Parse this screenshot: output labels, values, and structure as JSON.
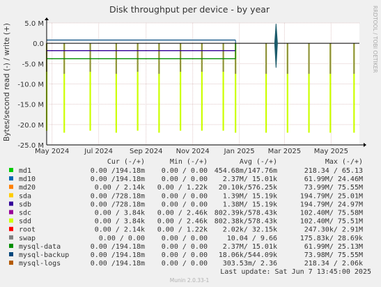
{
  "chart_data": {
    "type": "line",
    "title": "Disk throughput per device - by year",
    "ylabel": "Bytes/second read (-) / write (+)",
    "ylim": [
      -25000000,
      5000000
    ],
    "yticks": [
      {
        "value": 5000000,
        "label": "5.0 M"
      },
      {
        "value": 0,
        "label": "0.0"
      },
      {
        "value": -5000000,
        "label": "-5.0 M"
      },
      {
        "value": -10000000,
        "label": "-10.0 M"
      },
      {
        "value": -15000000,
        "label": "-15.0 M"
      },
      {
        "value": -20000000,
        "label": "-20.0 M"
      },
      {
        "value": -25000000,
        "label": "-25.0 M"
      }
    ],
    "xrange": [
      "2024-04-24",
      "2025-06-07"
    ],
    "xticks": [
      {
        "date": "2024-05-01",
        "label": "May 2024"
      },
      {
        "date": "2024-07-01",
        "label": "Jul 2024"
      },
      {
        "date": "2024-09-01",
        "label": "Sep 2024"
      },
      {
        "date": "2024-11-01",
        "label": "Nov 2024"
      },
      {
        "date": "2025-01-01",
        "label": "Jan 2025"
      },
      {
        "date": "2025-03-01",
        "label": "Mar 2025"
      },
      {
        "date": "2025-05-01",
        "label": "May 2025"
      }
    ],
    "grid": true,
    "series": [
      {
        "name": "md1",
        "color": "#00cc00",
        "cur": "0.00 /194.18m",
        "min": "0.00 /  0.00",
        "avg": "454.68m/147.76m",
        "max": "218.34 / 65.13"
      },
      {
        "name": "md10",
        "color": "#0066b3",
        "cur": "0.00 /194.18m",
        "min": "0.00 /  0.00",
        "avg": "2.37M/ 15.01k",
        "max": "61.99M/ 24.46M"
      },
      {
        "name": "md20",
        "color": "#ff8000",
        "cur": "0.00 /  2.14k",
        "min": "0.00 /  1.22k",
        "avg": "20.10k/576.25k",
        "max": "73.99M/ 75.55M"
      },
      {
        "name": "sda",
        "color": "#ffcc00",
        "cur": "0.00 /728.18m",
        "min": "0.00 /  0.00",
        "avg": "1.39M/ 15.19k",
        "max": "194.79M/ 25.01M"
      },
      {
        "name": "sdb",
        "color": "#330099",
        "cur": "0.00 /728.18m",
        "min": "0.00 /  0.00",
        "avg": "1.38M/ 15.19k",
        "max": "194.79M/ 24.97M"
      },
      {
        "name": "sdc",
        "color": "#990099",
        "cur": "0.00 /  3.84k",
        "min": "0.00 /  2.46k",
        "avg": "802.39k/578.43k",
        "max": "102.40M/ 75.58M"
      },
      {
        "name": "sdd",
        "color": "#ccff00",
        "cur": "0.00 /  3.84k",
        "min": "0.00 /  2.46k",
        "avg": "802.38k/578.43k",
        "max": "102.40M/ 75.51M"
      },
      {
        "name": "root",
        "color": "#ff0000",
        "cur": "0.00 /  2.14k",
        "min": "0.00 /  1.22k",
        "avg": "2.02k/ 32.15k",
        "max": "247.30k/  2.91M"
      },
      {
        "name": "swap",
        "color": "#808080",
        "cur": "0.00 /  0.00",
        "min": "0.00 /  0.00",
        "avg": "10.04 /  9.66",
        "max": "175.83k/ 28.69k"
      },
      {
        "name": "mysql-data",
        "color": "#008f00",
        "cur": "0.00 /194.18m",
        "min": "0.00 /  0.00",
        "avg": "2.37M/ 15.01k",
        "max": "61.99M/ 25.13M"
      },
      {
        "name": "mysql-backup",
        "color": "#00487d",
        "cur": "0.00 /194.18m",
        "min": "0.00 /  0.00",
        "avg": "18.06k/544.09k",
        "max": "73.98M/ 75.55M"
      },
      {
        "name": "mysql-logs",
        "color": "#b35a00",
        "cur": "0.00 /194.18m",
        "min": "0.00 /  0.00",
        "avg": "303.53m/  2.36",
        "max": "218.34 /  2.06k"
      }
    ],
    "lines": [
      {
        "series": "mysql-backup",
        "y": 800000,
        "to": "2024-12-27"
      },
      {
        "series": "sdb",
        "y": -1800000,
        "to": "2024-12-27"
      },
      {
        "series": "mysql-data",
        "y": -3800000,
        "to": "2024-12-27"
      }
    ],
    "spikes": [
      {
        "date": "2024-04-24",
        "bottom": -21500000,
        "depth": -7000000
      },
      {
        "date": "2024-05-17",
        "bottom": -22000000,
        "depth": -7500000
      },
      {
        "date": "2024-06-20",
        "bottom": -21500000,
        "depth": -7000000
      },
      {
        "date": "2024-07-24",
        "bottom": -22000000,
        "depth": -7500000
      },
      {
        "date": "2024-08-21",
        "bottom": -21500000,
        "depth": -7000000
      },
      {
        "date": "2024-09-18",
        "bottom": -22000000,
        "depth": -7500000
      },
      {
        "date": "2024-10-16",
        "bottom": -21500000,
        "depth": -7000000
      },
      {
        "date": "2024-11-13",
        "bottom": -21500000,
        "depth": -7000000
      },
      {
        "date": "2024-12-11",
        "bottom": -21500000,
        "depth": -7000000
      },
      {
        "date": "2024-12-27",
        "bottom": -22000000,
        "depth": -7500000
      },
      {
        "date": "2025-02-05",
        "bottom": -22000000,
        "depth": -7500000
      },
      {
        "date": "2025-03-05",
        "bottom": -22000000,
        "depth": -7500000
      },
      {
        "date": "2025-04-02",
        "bottom": -22000000,
        "depth": -7500000
      },
      {
        "date": "2025-04-30",
        "bottom": -22000000,
        "depth": -7500000
      },
      {
        "date": "2025-05-31",
        "bottom": -22000000,
        "depth": -7500000
      }
    ],
    "burst": {
      "date": "2025-02-18",
      "top": 4800000,
      "bottom": -6000000
    },
    "legend_headers": {
      "cur": "Cur (-/+)",
      "min": "Min (-/+)",
      "avg": "Avg (-/+)",
      "max": "Max (-/+)"
    },
    "last_update": "Last update:  Sat Jun  7 13:45:00 2025"
  },
  "watermark": "RRDTOOL / TOBI OETIKER",
  "footer": "Munin 2.0.33-1",
  "colors": {
    "grid": "#e0c8c8",
    "spike": "#ccff00",
    "spike_dark": "#8c8c40",
    "axis": "#000000"
  }
}
